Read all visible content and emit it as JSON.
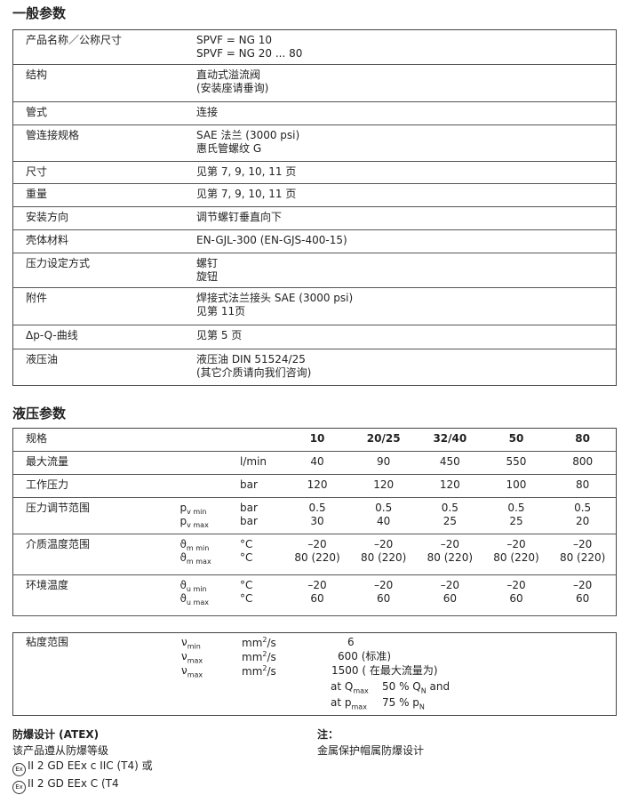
{
  "general": {
    "title": "一般参数",
    "rows": [
      {
        "label": "产品名称／公称尺寸",
        "lines": [
          "SPVF =  NG 10",
          "SPVF =  NG 20 ... 80"
        ]
      },
      {
        "label": "结构",
        "lines": [
          "直动式溢流阀",
          "(安装座请垂询)"
        ]
      },
      {
        "label": "管式",
        "lines": [
          "连接"
        ]
      },
      {
        "label": "管连接规格",
        "lines": [
          "SAE 法兰 (3000 psi)",
          "惠氏管螺纹 G"
        ]
      },
      {
        "label": "尺寸",
        "lines": [
          "见第 7, 9, 10, 11 页"
        ]
      },
      {
        "label": "重量",
        "lines": [
          "见第 7, 9, 10, 11 页"
        ]
      },
      {
        "label": "安装方向",
        "lines": [
          "调节螺钉垂直向下"
        ]
      },
      {
        "label": "壳体材料",
        "lines": [
          "EN-GJL-300 (EN-GJS-400-15)"
        ]
      },
      {
        "label": "压力设定方式",
        "lines": [
          "螺钉",
          "旋钮"
        ]
      },
      {
        "label": "附件",
        "lines": [
          "焊接式法兰接头 SAE (3000 psi)",
          "见第 11页"
        ]
      },
      {
        "label": "Δp-Q-曲线",
        "lines": [
          "见第 5 页"
        ]
      },
      {
        "label": "液压油",
        "lines": [
          "液压油 DIN 51524/25",
          "(其它介质请向我们咨询)"
        ]
      }
    ]
  },
  "hydraulic": {
    "title": "液压参数",
    "header": {
      "label": "规格",
      "sizes": [
        "10",
        "20/25",
        "32/40",
        "50",
        "80"
      ]
    },
    "rows": [
      {
        "label": "最大流量",
        "sub": [
          {
            "sym": "",
            "symsub": "",
            "unit": "l/min",
            "values": [
              "40",
              "90",
              "450",
              "550",
              "800"
            ]
          }
        ]
      },
      {
        "label": "工作压力",
        "sub": [
          {
            "sym": "",
            "symsub": "",
            "unit": "bar",
            "values": [
              "120",
              "120",
              "120",
              "100",
              "80"
            ]
          }
        ]
      },
      {
        "label": "压力调节范围",
        "sub": [
          {
            "sym": "p",
            "symsub": "v min",
            "unit": "bar",
            "values": [
              "0.5",
              "0.5",
              "0.5",
              "0.5",
              "0.5"
            ]
          },
          {
            "sym": "p",
            "symsub": "v max",
            "unit": "bar",
            "values": [
              "30",
              "40",
              "25",
              "25",
              "20"
            ]
          }
        ]
      },
      {
        "label": "介质温度范围",
        "sub": [
          {
            "sym": "ϑ",
            "symsub": "m min",
            "unit": "°C",
            "values": [
              "–20",
              "–20",
              "–20",
              "–20",
              "–20"
            ]
          },
          {
            "sym": "ϑ",
            "symsub": "m max",
            "unit": "°C",
            "values": [
              "80 (220)",
              "80 (220)",
              "80 (220)",
              "80 (220)",
              "80 (220)"
            ]
          }
        ]
      },
      {
        "label": "环境温度",
        "sub": [
          {
            "sym": "ϑ",
            "symsub": "u min",
            "unit": "°C",
            "values": [
              "–20",
              "–20",
              "–20",
              "–20",
              "–20"
            ]
          },
          {
            "sym": "ϑ",
            "symsub": "u max",
            "unit": "°C",
            "values": [
              "60",
              "60",
              "60",
              "60",
              "60"
            ]
          }
        ]
      }
    ]
  },
  "viscosity": {
    "label": "粘度范围",
    "rows": [
      {
        "sym": "ν",
        "symsub": "min",
        "unit": "mm",
        "unitsup": "2",
        "unitrest": "/s",
        "value": "6"
      },
      {
        "sym": "ν",
        "symsub": "max",
        "unit": "mm",
        "unitsup": "2",
        "unitrest": "/s",
        "value": "600 (标准)"
      },
      {
        "sym": "ν",
        "symsub": "max",
        "unit": "mm",
        "unitsup": "2",
        "unitrest": "/s",
        "value": "1500 ( 在最大流量为)"
      }
    ],
    "cond1": {
      "at": "at Q",
      "atsub": "max",
      "val": "50 % Q",
      "valsub": "N",
      "tail": " and"
    },
    "cond2": {
      "at": "at p",
      "atsub": "max",
      "val": "75 % p",
      "valsub": "N"
    }
  },
  "atex": {
    "title": "防爆设计 (ATEX)",
    "line1": "该产品遵从防爆等级",
    "ex_icon": "Ex",
    "line2": "II 2 GD EEx c IIC (T4)  或",
    "line3": "II 2 GD EEx C (T4"
  },
  "note": {
    "title": "注：",
    "text": "金属保护帽属防爆设计"
  }
}
